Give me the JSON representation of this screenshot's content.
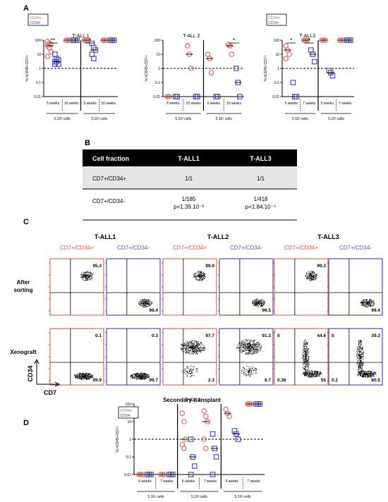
{
  "panels": {
    "a": "A",
    "b": "B",
    "c": "C",
    "d": "D"
  },
  "legend": {
    "pos": "CD34+",
    "neg": "CD34-"
  },
  "colors": {
    "pos": "#e06a5e",
    "neg": "#4b4fb5",
    "text_red": "#e05a50",
    "text_blue": "#5a5ab8"
  },
  "ylabel": "% hCD45+CD7+",
  "ticks": [
    "100",
    "10",
    "1",
    "0.1",
    "0.01"
  ],
  "chart_data": [
    {
      "type": "scatter",
      "title": "T-ALL 1",
      "ylim": [
        0.01,
        100
      ],
      "log": true,
      "threshold": 1,
      "groups": [
        {
          "week": "5 weeks",
          "cells": "5.10² cells",
          "pos": [
            80,
            60,
            50,
            40,
            30,
            15,
            7
          ],
          "neg": [
            10,
            5,
            4,
            3,
            3,
            2,
            2
          ]
        },
        {
          "week": "10 weeks",
          "cells": "5.10² cells",
          "pos": [
            100,
            100,
            100,
            100
          ],
          "neg": [
            100,
            100,
            100,
            100
          ]
        },
        {
          "week": "5 weeks",
          "cells": "5.10³ cells",
          "pos": [
            100,
            100,
            100,
            100
          ],
          "neg": [
            60,
            30,
            20,
            10,
            5
          ]
        },
        {
          "week": "10 weeks",
          "cells": "5.10³ cells",
          "pos": [
            100,
            100,
            100,
            100
          ],
          "neg": [
            100,
            100,
            100
          ]
        }
      ],
      "sig": [
        {
          "label": "**",
          "group": 0
        },
        {
          "label": "*",
          "group": 2
        }
      ]
    },
    {
      "type": "scatter",
      "title": "T-ALL 2",
      "ylim": [
        0.01,
        100
      ],
      "log": true,
      "threshold": 1,
      "groups": [
        {
          "week": "6 weeks",
          "cells": "5.10³ cells",
          "pos": [
            0.01,
            0.01
          ],
          "neg": [
            0.01,
            0.01
          ]
        },
        {
          "week": "10 weeks",
          "cells": "5.10³ cells",
          "pos": [
            40,
            10,
            1
          ],
          "neg": [
            0.01,
            0.01
          ]
        },
        {
          "week": "6 weeks",
          "cells": "5.10⁴ cells",
          "pos": [
            10,
            5,
            0.5
          ],
          "neg": [
            0.01,
            0.01
          ]
        },
        {
          "week": "10 weeks",
          "cells": "5.10⁴ cells",
          "pos": [
            50,
            40,
            10
          ],
          "neg": [
            1,
            0.1,
            0.01
          ]
        }
      ],
      "sig": [
        {
          "label": "*",
          "group": 3
        }
      ]
    },
    {
      "type": "scatter",
      "title": "T-ALL3",
      "ylim": [
        0.01,
        100
      ],
      "log": true,
      "threshold": 1,
      "groups": [
        {
          "week": "5 weeks",
          "cells": "5.10² cells",
          "pos": [
            40,
            20,
            10,
            5
          ],
          "neg": [
            0.1,
            0.01,
            0.01
          ]
        },
        {
          "week": "7 weeks",
          "cells": "5.10² cells",
          "pos": [
            100,
            100,
            100
          ],
          "neg": [
            20,
            10,
            3
          ]
        },
        {
          "week": "5 weeks",
          "cells": "5.10³ cells",
          "pos": [
            100,
            100,
            100
          ],
          "neg": [
            0.7,
            0.5,
            0.3
          ]
        },
        {
          "week": "7 weeks",
          "cells": "5.10³ cells",
          "pos": [
            100,
            100,
            100
          ],
          "neg": [
            100,
            100,
            100
          ]
        }
      ],
      "sig": [
        {
          "label": "*",
          "group": 0
        },
        {
          "label": "*",
          "group": 1
        }
      ]
    },
    {
      "type": "scatter",
      "title": "T-ALL3",
      "ylim": [
        0.01,
        100
      ],
      "log": true,
      "threshold": 1,
      "groups": [
        {
          "week": "6 weeks",
          "cells": "5.10¹ cells",
          "pos": [
            0.01,
            0.01,
            0.01
          ],
          "neg": [
            0.01,
            0.01,
            0.01
          ]
        },
        {
          "week": "7 weeks",
          "cells": "5.10¹ cells",
          "pos": [
            0.01,
            0.01,
            0.01
          ],
          "neg": [
            0.01,
            0.01,
            0.01
          ]
        },
        {
          "week": "6 weeks",
          "cells": "5.10² cells",
          "pos": [
            30,
            10,
            1,
            0.5,
            0.3
          ],
          "neg": [
            1,
            0.1,
            0.03,
            0.01
          ]
        },
        {
          "week": "7 weeks",
          "cells": "5.10² cells",
          "pos": [
            40,
            20,
            10,
            1,
            0.3
          ],
          "neg": [
            2,
            0.3,
            0.1,
            0.01
          ]
        },
        {
          "week": "6 weeks",
          "cells": "5.10³ cells",
          "pos": [
            50,
            30,
            20
          ],
          "neg": [
            3,
            2,
            1
          ]
        },
        {
          "week": "7 weeks",
          "cells": "5.10³ cells",
          "pos": [
            100,
            100,
            100
          ],
          "neg": [
            100,
            100,
            100
          ]
        }
      ],
      "sig": []
    }
  ],
  "table": {
    "headers": [
      "Cell fraction",
      "T-ALL1",
      "T-ALL3"
    ],
    "rows": [
      {
        "cells": [
          "CD7+/CD34+",
          "1/1",
          "1/1"
        ]
      },
      {
        "cells": [
          "CD7+/CD34-",
          "1/185\np=1.39.10⁻³",
          "1/418\np=1.84.10⁻⁴"
        ]
      }
    ]
  },
  "flow": {
    "groups": [
      "T-ALL1",
      "T-ALL2",
      "T-ALL3"
    ],
    "cols": [
      "CD7+/CD34+",
      "CD7+/CD34-",
      "CD7+/CD34+",
      "CD7+/CD34-",
      "CD7+/CD34+",
      "CD7+/CD34-"
    ],
    "row_labels": [
      "After\nsorting",
      "Xenograft"
    ],
    "xlabel": "CD7",
    "ylabel": "CD34",
    "secondary_label": "Secondary transplant",
    "after": [
      {
        "ur": "95.3"
      },
      {
        "lr": "98.4"
      },
      {
        "ur": "99.9"
      },
      {
        "lr": "99.5"
      },
      {
        "ur": "99.3"
      },
      {
        "lr": "99.4"
      }
    ],
    "xeno": [
      {
        "ur": "0.1",
        "lr": "99.9"
      },
      {
        "ur": "0.3",
        "lr": "99.7"
      },
      {
        "ur": "97.7",
        "lr": "2.3"
      },
      {
        "ur": "91.3",
        "lr": "8.7"
      },
      {
        "ul": "0",
        "ur": "44.6",
        "ll": "0.36",
        "lr": "55"
      },
      {
        "ul": "0",
        "ur": "39.3",
        "ll": "0.2",
        "lr": "60.5"
      }
    ]
  }
}
